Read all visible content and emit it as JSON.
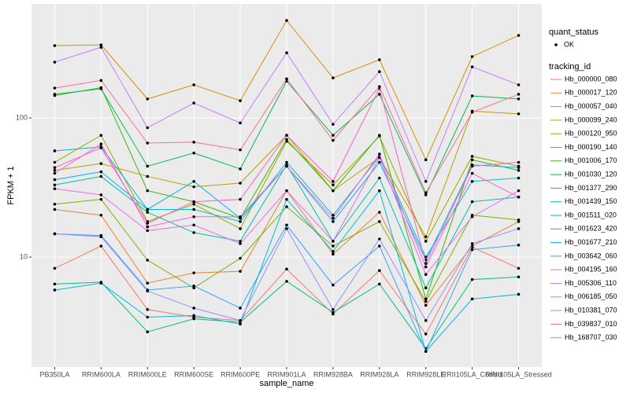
{
  "chart_data": {
    "type": "line",
    "x_label": "sample_name",
    "y_label": "FPKM + 1",
    "shape_legend_title": "quant_status",
    "shape_legend": [
      "OK"
    ],
    "legend_title": "tracking_id",
    "log_y": true,
    "grid": true,
    "ylim": [
      1.62,
      660
    ],
    "yticks": [
      10,
      100
    ],
    "categories": [
      "PB350LA",
      "RRIM600LA",
      "RRIM600LE",
      "RRIM600SE",
      "RRIM600PE",
      "RRIM901LA",
      "RRIM928BA",
      "RRIM928LA",
      "RRIM928LE",
      "RRII105LA_Control",
      "RRII105LA_Stressed"
    ],
    "series": [
      {
        "name": "Hb_000000_080",
        "color": "#F8766D",
        "values": [
          8.3,
          12,
          4.2,
          3.7,
          3.5,
          8.2,
          3.9,
          8,
          2.8,
          11.8,
          8.3
        ]
      },
      {
        "name": "Hb_000017_120",
        "color": "#EA8331",
        "values": [
          22,
          20,
          6.5,
          7.7,
          7.9,
          30,
          10.5,
          21,
          4.5,
          12,
          18
        ]
      },
      {
        "name": "Hb_000057_040",
        "color": "#D89000",
        "values": [
          331,
          335,
          137,
          173,
          133,
          502,
          194,
          262,
          50,
          276,
          392
        ]
      },
      {
        "name": "Hb_000099_240",
        "color": "#C09B00",
        "values": [
          42,
          47,
          38,
          32,
          34,
          75,
          30,
          52,
          14,
          112,
          107
        ]
      },
      {
        "name": "Hb_000120_950",
        "color": "#A3A500",
        "values": [
          48,
          75,
          18,
          24,
          16,
          68,
          33,
          74,
          13,
          53,
          45
        ]
      },
      {
        "name": "Hb_000190_140",
        "color": "#7CAE00",
        "values": [
          24,
          26,
          9.5,
          6,
          9.8,
          23,
          12,
          18,
          4.8,
          20,
          18.5
        ]
      },
      {
        "name": "Hb_001006_170",
        "color": "#39B600",
        "values": [
          145,
          165,
          30,
          25,
          19,
          70,
          30,
          75,
          5,
          50,
          42
        ]
      },
      {
        "name": "Hb_001030_120",
        "color": "#00BB4E",
        "values": [
          148,
          162,
          45,
          56,
          43,
          184,
          75,
          148,
          28,
          144,
          137
        ]
      },
      {
        "name": "Hb_001377_290",
        "color": "#00BF7D",
        "values": [
          6.4,
          6.6,
          2.9,
          3.6,
          3.4,
          6.7,
          4,
          6.4,
          2.2,
          6.9,
          7.2
        ]
      },
      {
        "name": "Hb_001439_150",
        "color": "#00C1A3",
        "values": [
          33,
          38,
          21,
          15,
          13,
          46,
          13,
          37,
          6,
          25,
          27
        ]
      },
      {
        "name": "Hb_001511_020",
        "color": "#00BFC4",
        "values": [
          58,
          62,
          22,
          22,
          18,
          48,
          20,
          53,
          10,
          35,
          37
        ]
      },
      {
        "name": "Hb_001623_420",
        "color": "#00BAE0",
        "values": [
          5.8,
          6.5,
          3.7,
          3.8,
          3.3,
          26,
          11,
          30,
          2.1,
          5,
          5.4
        ]
      },
      {
        "name": "Hb_001677_210",
        "color": "#00B0F6",
        "values": [
          36,
          41,
          22,
          35,
          19,
          45,
          18,
          48,
          9.5,
          46,
          44
        ]
      },
      {
        "name": "Hb_003642_060",
        "color": "#35A2FF",
        "values": [
          14.7,
          14.3,
          5.8,
          6.2,
          4.3,
          17,
          6.3,
          12,
          2.1,
          11.3,
          12.2
        ]
      },
      {
        "name": "Hb_004195_160",
        "color": "#9590FF",
        "values": [
          14.7,
          14,
          5.7,
          4.3,
          3.5,
          16,
          4.2,
          13.5,
          3.5,
          12.5,
          16
        ]
      },
      {
        "name": "Hb_005306_110",
        "color": "#C77CFF",
        "values": [
          252,
          322,
          85,
          128,
          92,
          294,
          90,
          215,
          35,
          233,
          173
        ]
      },
      {
        "name": "Hb_006185_050",
        "color": "#E76BF3",
        "values": [
          31,
          28,
          15.5,
          17,
          12.5,
          30,
          13,
          52,
          7.5,
          19.5,
          30
        ]
      },
      {
        "name": "Hb_010381_070",
        "color": "#FA62DB",
        "values": [
          40,
          65,
          16.5,
          19.5,
          19.5,
          45,
          19,
          55,
          8.5,
          40,
          27
        ]
      },
      {
        "name": "Hb_039837_010",
        "color": "#FF62BC",
        "values": [
          44,
          61,
          17.5,
          25,
          26,
          75,
          35,
          163,
          9,
          45,
          48
        ]
      },
      {
        "name": "Hb_168707_030",
        "color": "#FF6C91",
        "values": [
          164,
          186,
          66,
          67,
          59,
          191,
          69,
          168,
          29,
          110,
          148
        ]
      }
    ]
  }
}
